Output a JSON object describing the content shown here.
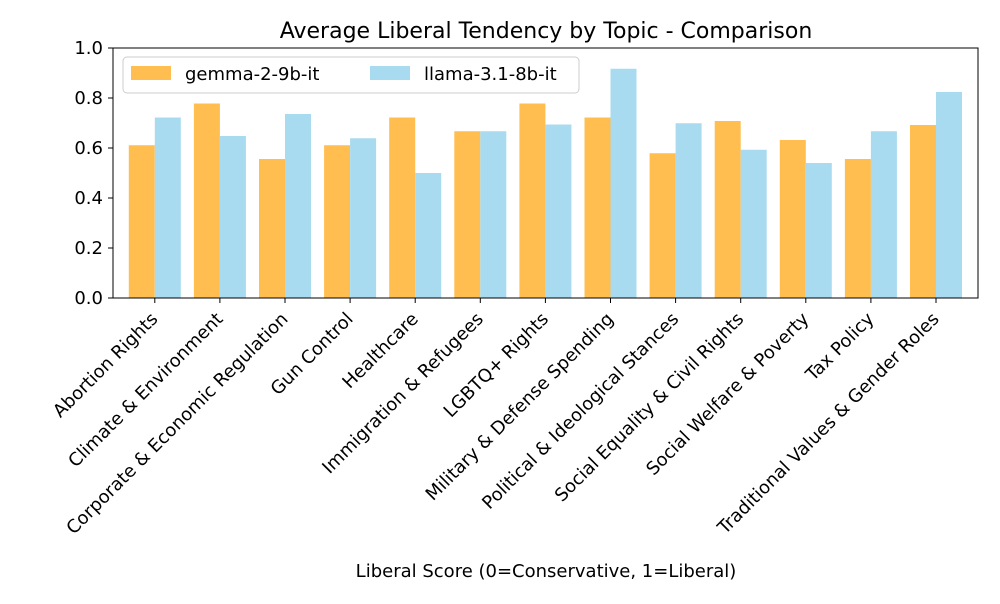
{
  "chart_data": {
    "type": "bar",
    "title": "Average Liberal Tendency by Topic - Comparison",
    "xlabel": "Liberal Score (0=Conservative, 1=Liberal)",
    "ylabel": "",
    "ylim": [
      0,
      1.0
    ],
    "yticks": [
      "0.0",
      "0.2",
      "0.4",
      "0.6",
      "0.8",
      "1.0"
    ],
    "grid": false,
    "legend_position": "top-left",
    "categories": [
      "Abortion Rights",
      "Climate & Environment",
      "Corporate & Economic Regulation",
      "Gun Control",
      "Healthcare",
      "Immigration & Refugees",
      "LGBTQ+ Rights",
      "Military & Defense Spending",
      "Political & Ideological Stances",
      "Social Equality & Civil Rights",
      "Social Welfare & Poverty",
      "Tax Policy",
      "Traditional Values & Gender Roles"
    ],
    "series": [
      {
        "name": "gemma-2-9b-it",
        "color": "#ffbe4f",
        "values": [
          0.611,
          0.778,
          0.556,
          0.611,
          0.722,
          0.667,
          0.778,
          0.722,
          0.579,
          0.708,
          0.632,
          0.556,
          0.692
        ]
      },
      {
        "name": "llama-3.1-8b-it",
        "color": "#a8dbef",
        "values": [
          0.722,
          0.648,
          0.736,
          0.639,
          0.5,
          0.667,
          0.694,
          0.917,
          0.699,
          0.593,
          0.54,
          0.667,
          0.824
        ]
      }
    ]
  }
}
